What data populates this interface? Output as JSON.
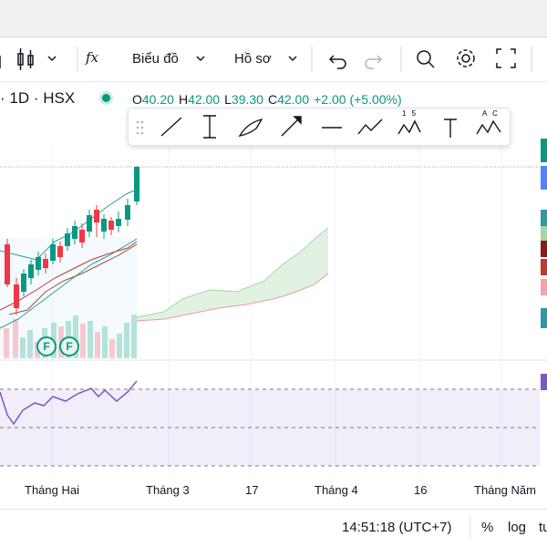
{
  "toolbar": {
    "formula": "fx",
    "chart_type": "Biểu đồ",
    "profile": "Hồ sơ"
  },
  "symbol_header": {
    "interval": "· 1D · HSX",
    "ohlc": [
      {
        "label": "O",
        "value": "40.20"
      },
      {
        "label": "H",
        "value": "42.00"
      },
      {
        "label": "L",
        "value": "39.30"
      },
      {
        "label": "C",
        "value": "42.00"
      }
    ],
    "change": "+2.00 (+5.00%)"
  },
  "drawing_tools": {
    "pattern_label": "1 5",
    "abc_label": "A C"
  },
  "chart": {
    "markers": [
      "F",
      "F"
    ]
  },
  "x_axis": {
    "labels": [
      "Tháng Hai",
      "Tháng 3",
      "17",
      "Tháng 4",
      "16",
      "Tháng Năm"
    ]
  },
  "status_bar": {
    "time": "14:51:18 (UTC+7)",
    "percent": "%",
    "log": "log",
    "auto": "tu"
  }
}
